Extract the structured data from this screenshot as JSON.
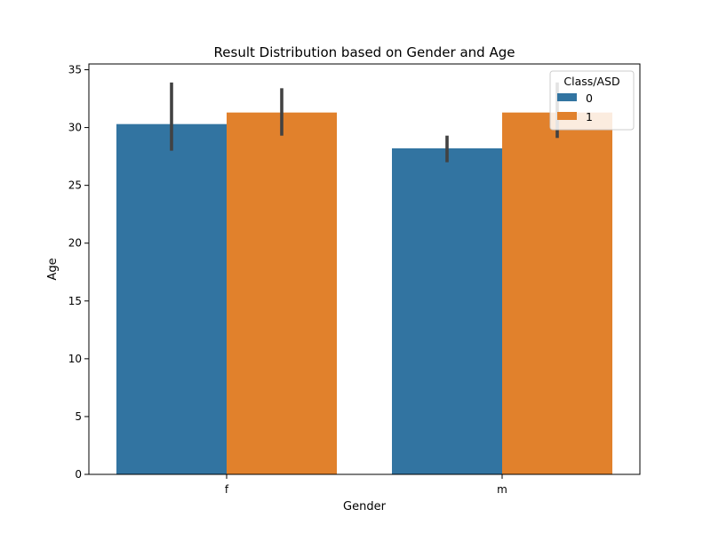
{
  "chart_data": {
    "type": "bar",
    "title": "Result Distribution based on Gender and Age",
    "xlabel": "Gender",
    "ylabel": "Age",
    "categories": [
      "f",
      "m"
    ],
    "ylim": [
      0,
      35.5
    ],
    "yticks": [
      0,
      5,
      10,
      15,
      20,
      25,
      30,
      35
    ],
    "legend": {
      "title": "Class/ASD",
      "placement": "top-right"
    },
    "series": [
      {
        "name": "0",
        "color": "#3274a1",
        "values": [
          30.3,
          28.2
        ],
        "ci": [
          [
            28.0,
            33.9
          ],
          [
            27.0,
            29.3
          ]
        ]
      },
      {
        "name": "1",
        "color": "#e1812c",
        "values": [
          31.3,
          31.3
        ],
        "ci": [
          [
            29.3,
            33.4
          ],
          [
            29.1,
            33.9
          ]
        ]
      }
    ],
    "grid": false
  }
}
